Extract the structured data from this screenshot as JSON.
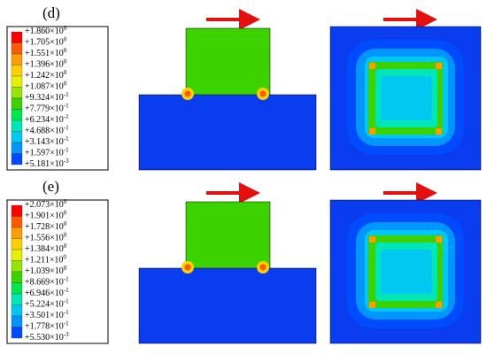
{
  "panels": [
    {
      "label": "(d)",
      "legend": [
        {
          "base": "+1.860×10",
          "exp": "0"
        },
        {
          "base": "+1.705×10",
          "exp": "0"
        },
        {
          "base": "+1.551×10",
          "exp": "0"
        },
        {
          "base": "+1.396×10",
          "exp": "0"
        },
        {
          "base": "+1.242×10",
          "exp": "0"
        },
        {
          "base": "+1.087×10",
          "exp": "0"
        },
        {
          "base": "+9.324×10",
          "exp": "-1"
        },
        {
          "base": "+7.779×10",
          "exp": "-1"
        },
        {
          "base": "+6.234×10",
          "exp": "-1"
        },
        {
          "base": "+4.688×10",
          "exp": "-1"
        },
        {
          "base": "+3.143×10",
          "exp": "-1"
        },
        {
          "base": "+1.597×10",
          "exp": "-1"
        },
        {
          "base": "+5.181×10",
          "exp": "-3"
        }
      ]
    },
    {
      "label": "(e)",
      "legend": [
        {
          "base": "+2.073×10",
          "exp": "0"
        },
        {
          "base": "+1.901×10",
          "exp": "0"
        },
        {
          "base": "+1.728×10",
          "exp": "0"
        },
        {
          "base": "+1.556×10",
          "exp": "0"
        },
        {
          "base": "+1.384×10",
          "exp": "0"
        },
        {
          "base": "+1.211×10",
          "exp": "0"
        },
        {
          "base": "+1.039×10",
          "exp": "0"
        },
        {
          "base": "+8.669×10",
          "exp": "-1"
        },
        {
          "base": "+6.946×10",
          "exp": "-1"
        },
        {
          "base": "+5.224×10",
          "exp": "-1"
        },
        {
          "base": "+3.501×10",
          "exp": "-1"
        },
        {
          "base": "+1.778×10",
          "exp": "-1"
        },
        {
          "base": "+5.530×10",
          "exp": "-3"
        }
      ]
    }
  ]
}
